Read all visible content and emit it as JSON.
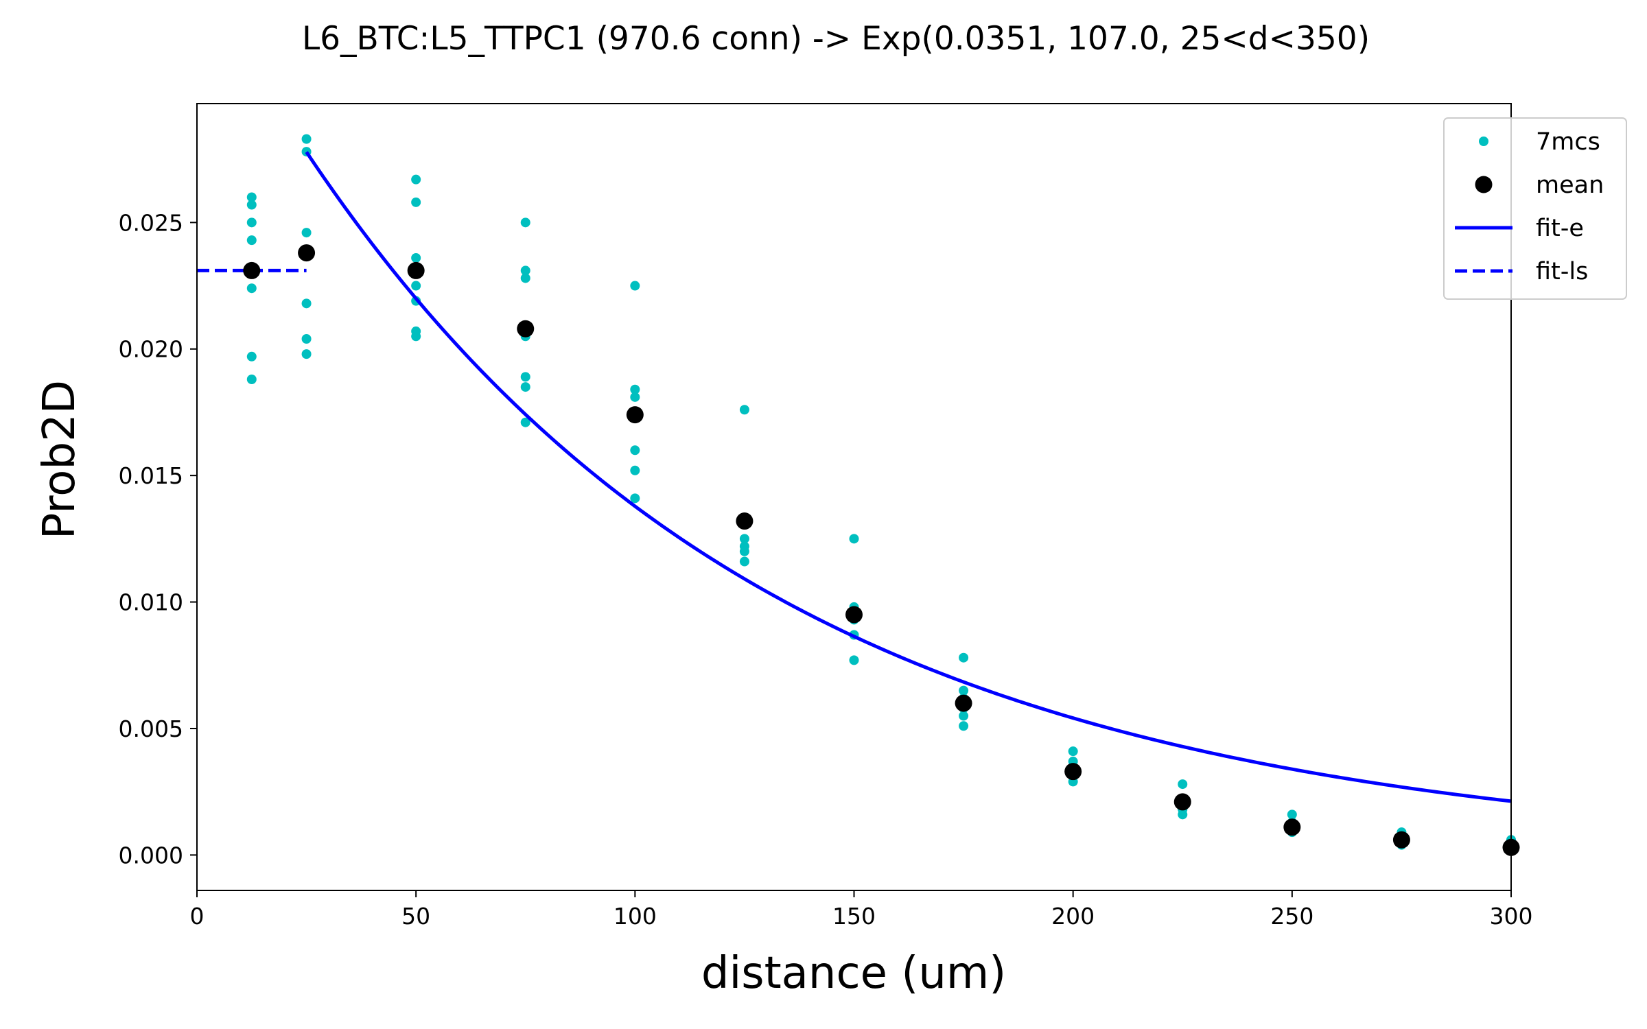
{
  "chart_data": {
    "type": "scatter",
    "title": "L6_BTC:L5_TTPC1 (970.6 conn) -> Exp(0.0351, 107.0, 25<d<350)",
    "xlabel": "distance (um)",
    "ylabel": "Prob2D",
    "xlim": [
      0,
      300
    ],
    "ylim": [
      -0.0014,
      0.0297
    ],
    "x_ticks": [
      0,
      50,
      100,
      150,
      200,
      250,
      300
    ],
    "x_tick_labels": [
      "0",
      "50",
      "100",
      "150",
      "200",
      "250",
      "300"
    ],
    "y_ticks": [
      0.0,
      0.005,
      0.01,
      0.015,
      0.02,
      0.025
    ],
    "y_tick_labels": [
      "0.000",
      "0.005",
      "0.010",
      "0.015",
      "0.020",
      "0.025"
    ],
    "grid": false,
    "legend_position": "top-right",
    "legend": [
      "7mcs",
      "mean",
      "fit-e",
      "fit-ls"
    ],
    "colors": {
      "mcs": "#00bfbf",
      "mean": "#000000",
      "fit": "#0000ff"
    },
    "series": [
      {
        "name": "7mcs",
        "style": "points",
        "points": [
          [
            12.5,
            0.026
          ],
          [
            12.5,
            0.0257
          ],
          [
            12.5,
            0.025
          ],
          [
            12.5,
            0.0243
          ],
          [
            12.5,
            0.0224
          ],
          [
            12.5,
            0.0197
          ],
          [
            12.5,
            0.0188
          ],
          [
            25,
            0.0283
          ],
          [
            25,
            0.0278
          ],
          [
            25,
            0.0246
          ],
          [
            25,
            0.0218
          ],
          [
            25,
            0.0204
          ],
          [
            25,
            0.0198
          ],
          [
            50,
            0.0267
          ],
          [
            50,
            0.0258
          ],
          [
            50,
            0.0236
          ],
          [
            50,
            0.0225
          ],
          [
            50,
            0.0219
          ],
          [
            50,
            0.0207
          ],
          [
            50,
            0.0205
          ],
          [
            75,
            0.025
          ],
          [
            75,
            0.0231
          ],
          [
            75,
            0.0228
          ],
          [
            75,
            0.0205
          ],
          [
            75,
            0.0189
          ],
          [
            75,
            0.0185
          ],
          [
            75,
            0.0171
          ],
          [
            100,
            0.0225
          ],
          [
            100,
            0.0184
          ],
          [
            100,
            0.0181
          ],
          [
            100,
            0.016
          ],
          [
            100,
            0.0152
          ],
          [
            100,
            0.0141
          ],
          [
            125,
            0.0176
          ],
          [
            125,
            0.0125
          ],
          [
            125,
            0.0122
          ],
          [
            125,
            0.012
          ],
          [
            125,
            0.0116
          ],
          [
            150,
            0.0125
          ],
          [
            150,
            0.0098
          ],
          [
            150,
            0.0095
          ],
          [
            150,
            0.0093
          ],
          [
            150,
            0.0087
          ],
          [
            150,
            0.0077
          ],
          [
            175,
            0.0078
          ],
          [
            175,
            0.0065
          ],
          [
            175,
            0.0062
          ],
          [
            175,
            0.0058
          ],
          [
            175,
            0.0055
          ],
          [
            175,
            0.0051
          ],
          [
            200,
            0.0041
          ],
          [
            200,
            0.0037
          ],
          [
            200,
            0.0034
          ],
          [
            200,
            0.0031
          ],
          [
            200,
            0.0029
          ],
          [
            225,
            0.0028
          ],
          [
            225,
            0.0022
          ],
          [
            225,
            0.002
          ],
          [
            225,
            0.0018
          ],
          [
            225,
            0.0016
          ],
          [
            250,
            0.0016
          ],
          [
            250,
            0.0013
          ],
          [
            250,
            0.0011
          ],
          [
            250,
            0.001
          ],
          [
            250,
            0.0009
          ],
          [
            275,
            0.0009
          ],
          [
            275,
            0.0007
          ],
          [
            275,
            0.0006
          ],
          [
            275,
            0.0005
          ],
          [
            275,
            0.0004
          ],
          [
            300,
            0.0006
          ],
          [
            300,
            0.0004
          ],
          [
            300,
            0.0003
          ],
          [
            300,
            0.0002
          ]
        ]
      },
      {
        "name": "mean",
        "style": "points",
        "points": [
          [
            12.5,
            0.0231
          ],
          [
            25,
            0.0238
          ],
          [
            50,
            0.0231
          ],
          [
            75,
            0.0208
          ],
          [
            100,
            0.0174
          ],
          [
            125,
            0.0132
          ],
          [
            150,
            0.0095
          ],
          [
            175,
            0.006
          ],
          [
            200,
            0.0033
          ],
          [
            225,
            0.0021
          ],
          [
            250,
            0.0011
          ],
          [
            275,
            0.0006
          ],
          [
            300,
            0.0003
          ]
        ]
      },
      {
        "name": "fit-e",
        "style": "line",
        "function": "exp",
        "amplitude": 0.0351,
        "length_constant": 107.0,
        "x_range": [
          25,
          300
        ]
      },
      {
        "name": "fit-ls",
        "style": "dashed",
        "points": [
          [
            0,
            0.0231
          ],
          [
            25,
            0.0231
          ]
        ]
      }
    ]
  }
}
